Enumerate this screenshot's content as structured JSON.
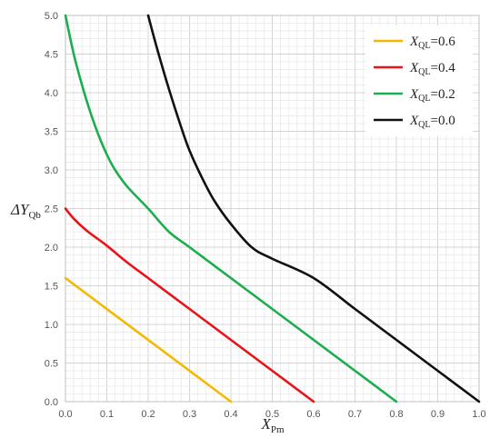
{
  "chart_data": {
    "type": "line",
    "xlabel": {
      "main": "X",
      "sub": "Pm"
    },
    "ylabel": {
      "main": "ΔY",
      "sub": "Qb"
    },
    "xlim": [
      0,
      1.0
    ],
    "ylim": [
      0,
      5.0
    ],
    "xticks": [
      "0.0",
      "0.1",
      "0.2",
      "0.3",
      "0.4",
      "0.5",
      "0.6",
      "0.7",
      "0.8",
      "0.9",
      "1.0"
    ],
    "yticks": [
      "0.0",
      "0.5",
      "1.0",
      "1.5",
      "2.0",
      "2.5",
      "3.0",
      "3.5",
      "4.0",
      "4.5",
      "5.0"
    ],
    "grid": true,
    "legend_position": "top-right",
    "series": [
      {
        "name_main": "X",
        "name_sub": "QL",
        "name_value": "=0.6",
        "color": "#f5b800",
        "x": [
          0.0,
          0.4
        ],
        "y": [
          1.6,
          0.0
        ]
      },
      {
        "name_main": "X",
        "name_sub": "QL",
        "name_value": "=0.4",
        "color": "#e8141a",
        "x": [
          0.0,
          0.02,
          0.05,
          0.08,
          0.1,
          0.15,
          0.2,
          0.3,
          0.4,
          0.5,
          0.6
        ],
        "y": [
          2.5,
          2.37,
          2.22,
          2.1,
          2.02,
          1.8,
          1.6,
          1.2,
          0.8,
          0.4,
          0.0
        ]
      },
      {
        "name_main": "X",
        "name_sub": "QL",
        "name_value": "=0.2",
        "color": "#1aae4e",
        "x": [
          0.0,
          0.02,
          0.04,
          0.06,
          0.08,
          0.1,
          0.12,
          0.15,
          0.2,
          0.25,
          0.3,
          0.4,
          0.5,
          0.6,
          0.7,
          0.8
        ],
        "y": [
          5.0,
          4.5,
          4.1,
          3.75,
          3.45,
          3.2,
          3.0,
          2.78,
          2.5,
          2.2,
          2.0,
          1.6,
          1.2,
          0.8,
          0.4,
          0.0
        ]
      },
      {
        "name_main": "X",
        "name_sub": "QL",
        "name_value": "=0.0",
        "color": "#111111",
        "x": [
          0.2,
          0.22,
          0.25,
          0.28,
          0.3,
          0.33,
          0.36,
          0.4,
          0.45,
          0.5,
          0.6,
          0.7,
          0.8,
          0.9,
          1.0
        ],
        "y": [
          5.0,
          4.6,
          4.05,
          3.55,
          3.25,
          2.9,
          2.6,
          2.3,
          2.0,
          1.85,
          1.6,
          1.2,
          0.8,
          0.4,
          0.0
        ]
      }
    ]
  }
}
